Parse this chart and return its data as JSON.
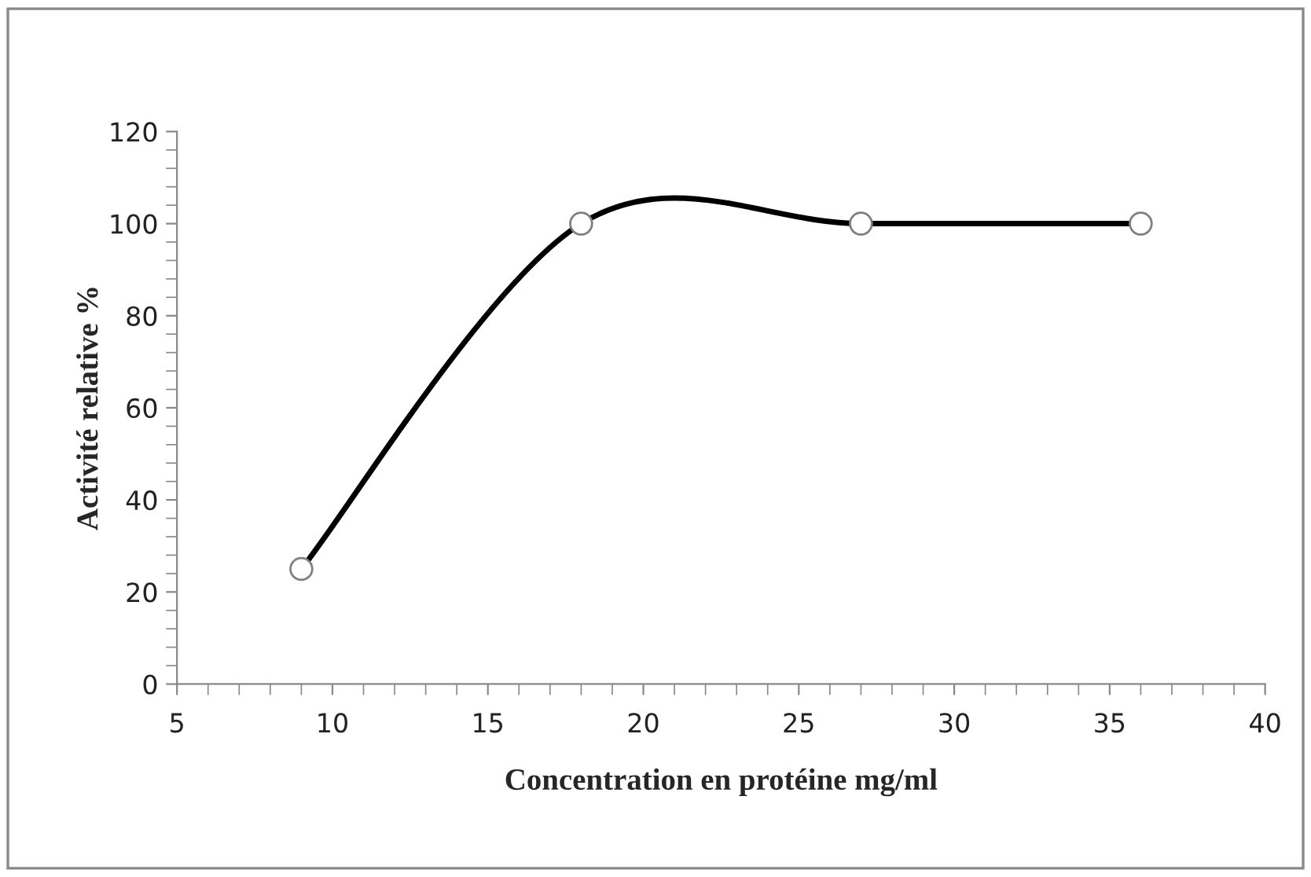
{
  "chart_data": {
    "type": "line",
    "xlabel": "Concentration en protéine mg/ml",
    "ylabel": "Activité relative %",
    "x": [
      9,
      18,
      27,
      36
    ],
    "series": [
      {
        "color": "#000000",
        "values": [
          25,
          100,
          100,
          100
        ]
      }
    ],
    "xlim": [
      5,
      40
    ],
    "xticks": [
      5,
      10,
      15,
      20,
      25,
      30,
      35,
      40
    ],
    "ylim": [
      0,
      120
    ],
    "yticks": [
      0,
      20,
      40,
      60,
      80,
      100,
      120
    ],
    "grid": false,
    "marker": "circle",
    "line_style": "solid"
  }
}
